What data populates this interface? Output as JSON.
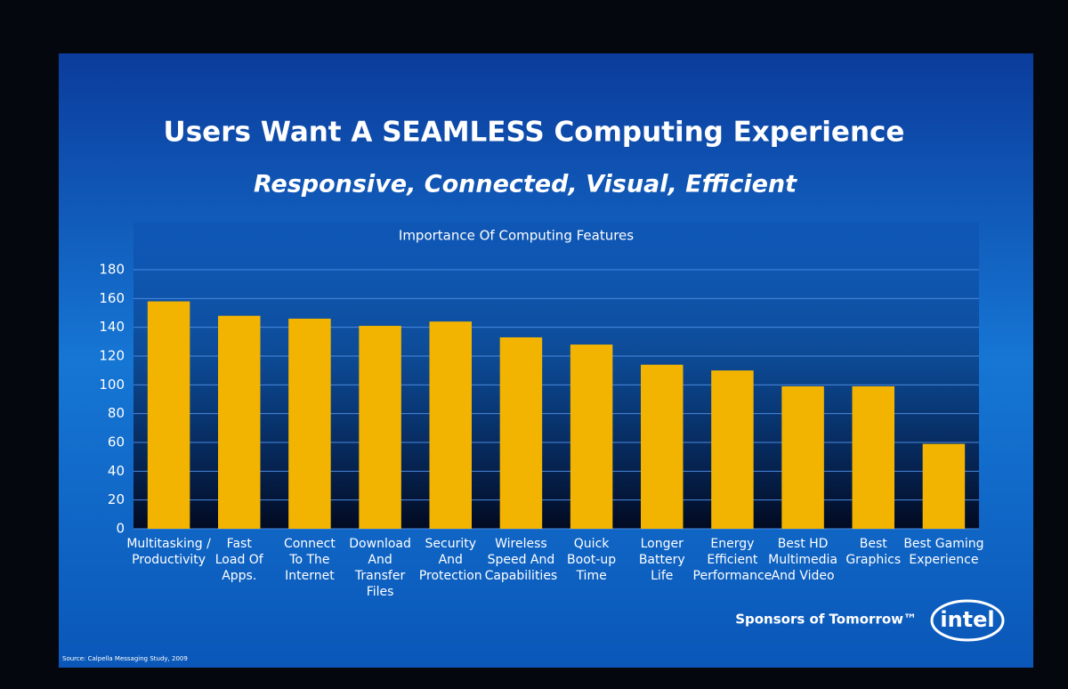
{
  "chart_data": {
    "type": "bar",
    "title": "Users Want A SEAMLESS Computing Experience",
    "subtitle": "Responsive, Connected, Visual, Efficient",
    "chart_title": "Importance Of Computing Features",
    "categories": [
      "Multitasking /\nProductivity",
      "Fast\nLoad Of\nApps.",
      "Connect\nTo The\nInternet",
      "Download\nAnd\nTransfer\nFiles",
      "Security\nAnd\nProtection",
      "Wireless\nSpeed And\nCapabilities",
      "Quick\nBoot-up\nTime",
      "Longer\nBattery\nLife",
      "Energy\nEfficient\nPerformance",
      "Best HD\nMultimedia\nAnd Video",
      "Best\nGraphics",
      "Best Gaming\nExperience"
    ],
    "values": [
      158,
      148,
      146,
      141,
      144,
      133,
      128,
      114,
      110,
      99,
      99,
      59
    ],
    "color": "#f2b400",
    "ylim": [
      0,
      180
    ],
    "yticks": [
      0,
      20,
      40,
      60,
      80,
      100,
      120,
      140,
      160,
      180
    ],
    "grid": true,
    "source": "Source: Calpella Messaging Study, 2009",
    "tagline": "Sponsors of Tomorrow™",
    "logo": "intel"
  }
}
